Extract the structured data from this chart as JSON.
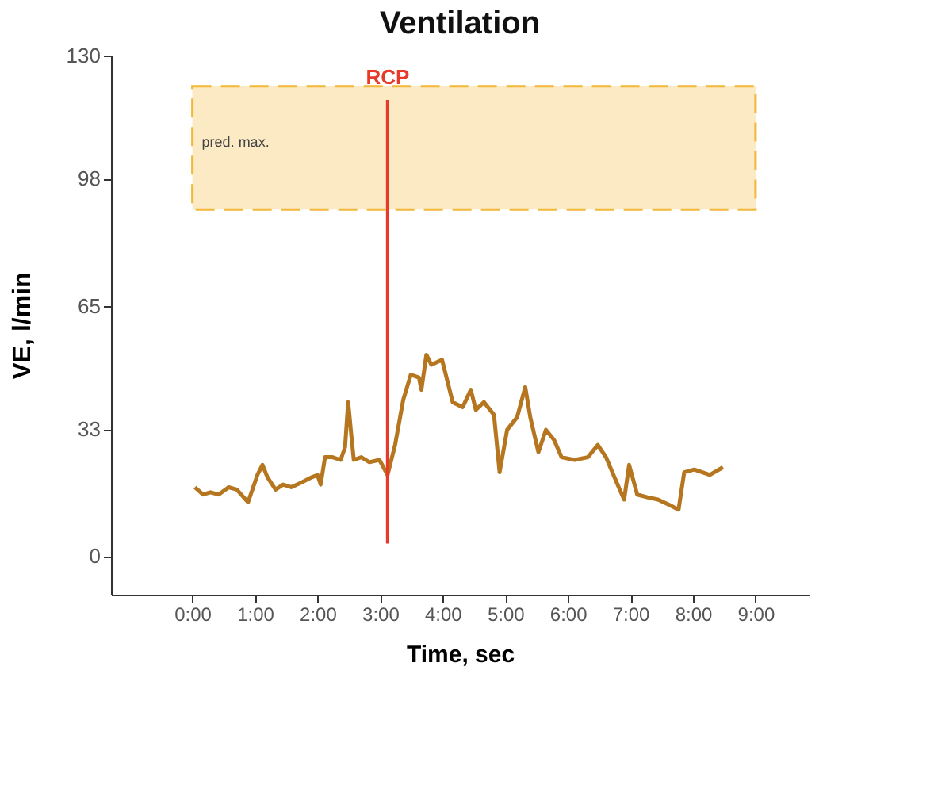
{
  "chart_data": {
    "type": "line",
    "title": "Ventilation",
    "xlabel": "Time, sec",
    "ylabel": "VE, l/min",
    "x": [
      0.04,
      0.17,
      0.29,
      0.42,
      0.58,
      0.71,
      0.89,
      1.04,
      1.12,
      1.2,
      1.33,
      1.45,
      1.58,
      1.75,
      1.91,
      2.0,
      2.05,
      2.12,
      2.24,
      2.37,
      2.44,
      2.49,
      2.54,
      2.58,
      2.7,
      2.83,
      2.99,
      3.12,
      3.24,
      3.37,
      3.49,
      3.62,
      3.66,
      3.74,
      3.82,
      3.99,
      4.16,
      4.32,
      4.45,
      4.53,
      4.66,
      4.82,
      4.91,
      5.03,
      5.19,
      5.32,
      5.4,
      5.53,
      5.65,
      5.78,
      5.9,
      6.11,
      6.32,
      6.48,
      6.61,
      6.78,
      6.9,
      6.98,
      7.11,
      7.27,
      7.44,
      7.61,
      7.77,
      7.86,
      8.02,
      8.27,
      8.48
    ],
    "series": [
      {
        "color": "#b5761f",
        "values": [
          17.9,
          16.0,
          16.6,
          16.0,
          17.9,
          17.3,
          14.0,
          21.1,
          23.7,
          20.5,
          17.3,
          18.6,
          17.9,
          19.2,
          20.5,
          21.1,
          18.6,
          25.7,
          25.7,
          25.0,
          28.3,
          40.0,
          31.5,
          25.0,
          25.7,
          24.4,
          25.0,
          21.1,
          28.9,
          40.6,
          47.1,
          46.4,
          43.2,
          52.3,
          49.7,
          51.0,
          40.0,
          38.7,
          43.2,
          38.0,
          40.0,
          36.7,
          21.8,
          32.8,
          36.1,
          43.9,
          36.1,
          27.0,
          32.8,
          30.2,
          25.7,
          25.0,
          25.7,
          28.9,
          25.7,
          19.2,
          14.7,
          23.7,
          16.0,
          15.3,
          14.7,
          13.4,
          12.1,
          21.8,
          22.5,
          21.1,
          23.1
        ]
      }
    ],
    "xlim": [
      -1.3,
      9.85
    ],
    "ylim": [
      -10,
      130
    ],
    "xticks": [
      {
        "value": 0,
        "label": "0:00"
      },
      {
        "value": 1,
        "label": "1:00"
      },
      {
        "value": 2,
        "label": "2:00"
      },
      {
        "value": 3,
        "label": "3:00"
      },
      {
        "value": 4,
        "label": "4:00"
      },
      {
        "value": 5,
        "label": "5:00"
      },
      {
        "value": 6,
        "label": "6:00"
      },
      {
        "value": 7,
        "label": "7:00"
      },
      {
        "value": 8,
        "label": "8:00"
      },
      {
        "value": 9,
        "label": "9:00"
      }
    ],
    "yticks": [
      0,
      33,
      65,
      98,
      130
    ],
    "bands": [
      {
        "axis": "y",
        "from": 90,
        "to": 122,
        "label": "pred. max.",
        "color": "#f2b83a"
      }
    ],
    "ref_lines": [
      {
        "axis": "x",
        "value": 3.12,
        "label": "RCP",
        "color": "#e8392a"
      }
    ],
    "grid": false,
    "legend": false,
    "marker": "none",
    "line_style": "solid"
  }
}
